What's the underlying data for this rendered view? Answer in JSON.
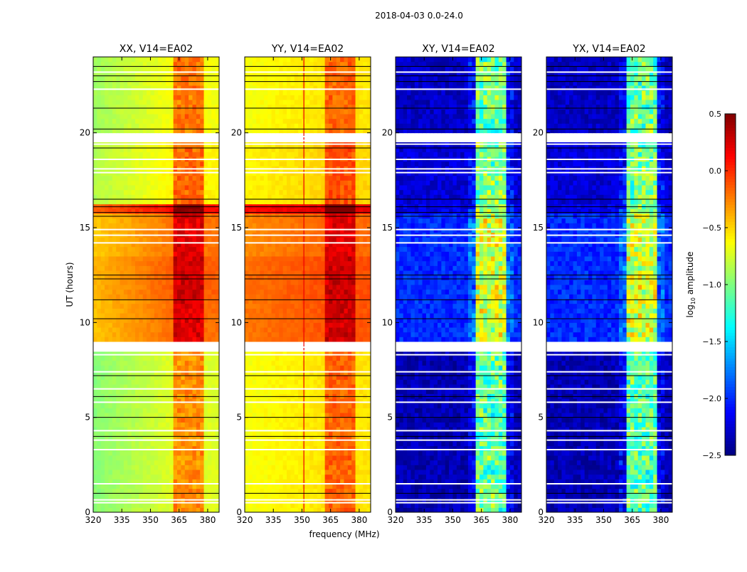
{
  "chart_data": {
    "type": "heatmap",
    "title": "2018-04-03 0.0-24.0",
    "xlabel": "frequency (MHz)",
    "ylabel": "UT (hours)",
    "xlim": [
      320,
      386
    ],
    "ylim": [
      0,
      24
    ],
    "xticks": [
      320,
      335,
      350,
      365,
      380
    ],
    "yticks": [
      0,
      5,
      10,
      15,
      20
    ],
    "colorbar": {
      "label_main": "log",
      "label_sub": "10",
      "label_rest": " amplitude",
      "range": [
        -2.5,
        0.5
      ],
      "ticks": [
        "0.5",
        "0.0",
        "−0.5",
        "−1.0",
        "−1.5",
        "−2.0",
        "−2.5"
      ],
      "tick_values": [
        0.5,
        0.0,
        -0.5,
        -1.0,
        -1.5,
        -2.0,
        -2.5
      ],
      "colormap": "jet"
    },
    "flagged_white_hours": [
      0.5,
      0.65,
      1.5,
      3.3,
      3.8,
      4.3,
      5.8,
      6.5,
      7.4,
      8.3,
      8.5,
      8.7,
      14.2,
      14.6,
      14.9,
      17.9,
      18.1,
      18.6,
      19.4,
      19.6,
      19.8,
      22.3,
      23.2
    ],
    "black_line_hours": [
      1.0,
      4.0,
      5.0,
      6.1,
      7.2,
      10.2,
      11.2,
      12.3,
      12.5,
      15.6,
      15.8,
      16.1,
      16.5,
      19.2,
      20.2,
      21.3,
      22.7,
      23.0,
      23.5
    ],
    "panels": [
      {
        "title": "XX, V14=EA02",
        "segments": [
          [
            0,
            8.3,
            -0.72
          ],
          [
            8.8,
            11.2,
            -0.2
          ],
          [
            11.2,
            13.4,
            -0.15
          ],
          [
            13.4,
            15.6,
            -0.22
          ],
          [
            15.6,
            16.1,
            0.1
          ],
          [
            16.1,
            19.3,
            -0.6
          ],
          [
            19.8,
            24,
            -0.65
          ]
        ],
        "band_boost": 0.45,
        "left_slope": -0.25,
        "rfi_line": null
      },
      {
        "title": "YY, V14=EA02",
        "segments": [
          [
            0,
            8.3,
            -0.55
          ],
          [
            8.8,
            11.2,
            -0.12
          ],
          [
            11.2,
            13.4,
            -0.1
          ],
          [
            13.4,
            15.6,
            -0.18
          ],
          [
            15.6,
            16.1,
            0.2
          ],
          [
            16.1,
            19.3,
            -0.5
          ],
          [
            19.8,
            24,
            -0.55
          ]
        ],
        "band_boost": 0.4,
        "left_slope": -0.1,
        "rfi_line": 351
      },
      {
        "title": "XY, V14=EA02",
        "segments": [
          [
            0,
            8.3,
            -2.35
          ],
          [
            8.8,
            15.6,
            -2.0
          ],
          [
            15.6,
            16.1,
            -2.2
          ],
          [
            16.1,
            19.3,
            -2.25
          ],
          [
            19.8,
            24,
            -2.3
          ]
        ],
        "band_boost": 1.3,
        "left_slope": 0,
        "rfi_line": null
      },
      {
        "title": "YX, V14=EA02",
        "segments": [
          [
            0,
            8.3,
            -2.35
          ],
          [
            8.8,
            15.6,
            -2.0
          ],
          [
            15.6,
            16.1,
            -2.2
          ],
          [
            16.1,
            19.3,
            -2.25
          ],
          [
            19.8,
            24,
            -2.3
          ]
        ],
        "band_boost": 1.3,
        "left_slope": 0,
        "rfi_line": null
      }
    ],
    "bands_mhz": [
      [
        363,
        366
      ],
      [
        367,
        370
      ],
      [
        371,
        374
      ],
      [
        375,
        379
      ]
    ]
  }
}
